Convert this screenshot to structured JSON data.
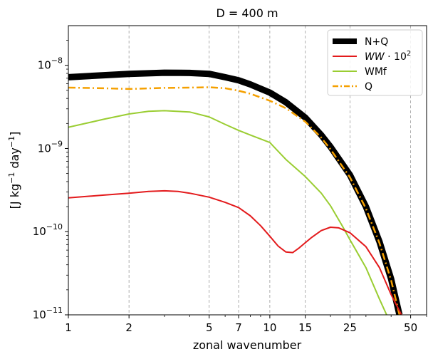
{
  "chart_data": {
    "type": "line",
    "title": "D = 400 m",
    "xlabel": "zonal wavenumber",
    "ylabel_parts": [
      "[J kg",
      "−1",
      " day",
      "−1",
      "]"
    ],
    "xscale": "log",
    "yscale": "log",
    "xlim": [
      1,
      60
    ],
    "ylim": [
      1e-11,
      3e-08
    ],
    "x_ticks": [
      1,
      2,
      5,
      7,
      10,
      15,
      25,
      50
    ],
    "x_tick_labels": [
      "1",
      "2",
      "5",
      "7",
      "10",
      "15",
      "25",
      "50"
    ],
    "y_ticks": [
      {
        "value": 1e-11,
        "mantissa": "10",
        "exp": "−11"
      },
      {
        "value": 1e-10,
        "mantissa": "10",
        "exp": "−10"
      },
      {
        "value": 1e-09,
        "mantissa": "10",
        "exp": "−9"
      },
      {
        "value": 1e-08,
        "mantissa": "10",
        "exp": "−8"
      }
    ],
    "vgrid": true,
    "legend_position": "top-right",
    "legend_labels": [
      {
        "base": "N+Q"
      },
      {
        "base": "WW",
        "suffix": " · 10",
        "exp": "2",
        "italic_base": true
      },
      {
        "base": "WMf"
      },
      {
        "base": "Q"
      }
    ],
    "series": [
      {
        "name": "N+Q",
        "color": "#000000",
        "style": "solid",
        "width": 9,
        "points": [
          [
            1,
            7.2e-09
          ],
          [
            1.5,
            7.6e-09
          ],
          [
            2,
            7.9e-09
          ],
          [
            3,
            8.15e-09
          ],
          [
            4,
            8.1e-09
          ],
          [
            5,
            7.9e-09
          ],
          [
            6,
            7.2e-09
          ],
          [
            7,
            6.6e-09
          ],
          [
            8,
            5.9e-09
          ],
          [
            10,
            4.7e-09
          ],
          [
            12,
            3.6e-09
          ],
          [
            15,
            2.35e-09
          ],
          [
            18,
            1.45e-09
          ],
          [
            20,
            1.05e-09
          ],
          [
            25,
            4.8e-10
          ],
          [
            30,
            2e-10
          ],
          [
            35,
            7.6e-11
          ],
          [
            40,
            2.7e-11
          ],
          [
            44,
            1e-11
          ]
        ]
      },
      {
        "name": "WW · 10^2",
        "color": "#e31a1c",
        "style": "solid",
        "width": 2,
        "points": [
          [
            1,
            2.55e-10
          ],
          [
            1.5,
            2.75e-10
          ],
          [
            2,
            2.9e-10
          ],
          [
            2.5,
            3.05e-10
          ],
          [
            3,
            3.1e-10
          ],
          [
            3.5,
            3.05e-10
          ],
          [
            4,
            2.9e-10
          ],
          [
            5,
            2.6e-10
          ],
          [
            6,
            2.25e-10
          ],
          [
            7,
            1.95e-10
          ],
          [
            8,
            1.55e-10
          ],
          [
            9,
            1.18e-10
          ],
          [
            10,
            8.8e-11
          ],
          [
            11,
            6.7e-11
          ],
          [
            12,
            5.7e-11
          ],
          [
            13,
            5.6e-11
          ],
          [
            14,
            6.4e-11
          ],
          [
            16,
            8.4e-11
          ],
          [
            18,
            1.03e-10
          ],
          [
            20,
            1.13e-10
          ],
          [
            22,
            1.11e-10
          ],
          [
            25,
            9.7e-11
          ],
          [
            30,
            6.6e-11
          ],
          [
            35,
            3.7e-11
          ],
          [
            40,
            1.75e-11
          ],
          [
            45,
            1e-11
          ]
        ]
      },
      {
        "name": "WMf",
        "color": "#9acd32",
        "style": "solid",
        "width": 2,
        "points": [
          [
            1,
            1.8e-09
          ],
          [
            1.5,
            2.25e-09
          ],
          [
            2,
            2.6e-09
          ],
          [
            2.5,
            2.8e-09
          ],
          [
            3,
            2.85e-09
          ],
          [
            4,
            2.75e-09
          ],
          [
            5,
            2.4e-09
          ],
          [
            6,
            1.95e-09
          ],
          [
            7,
            1.65e-09
          ],
          [
            8,
            1.45e-09
          ],
          [
            10,
            1.18e-09
          ],
          [
            12,
            7.4e-10
          ],
          [
            15,
            4.6e-10
          ],
          [
            18,
            2.9e-10
          ],
          [
            20,
            2.05e-10
          ],
          [
            23,
            1.15e-10
          ],
          [
            25,
            8e-11
          ],
          [
            30,
            3.7e-11
          ],
          [
            35,
            1.55e-11
          ],
          [
            38,
            1e-11
          ]
        ]
      },
      {
        "name": "Q",
        "color": "#f5a000",
        "style": "dashdot",
        "width": 2.5,
        "points": [
          [
            1,
            5.4e-09
          ],
          [
            1.5,
            5.3e-09
          ],
          [
            2,
            5.2e-09
          ],
          [
            3,
            5.35e-09
          ],
          [
            4,
            5.4e-09
          ],
          [
            5,
            5.45e-09
          ],
          [
            6,
            5.3e-09
          ],
          [
            7,
            4.95e-09
          ],
          [
            8,
            4.55e-09
          ],
          [
            10,
            3.75e-09
          ],
          [
            12,
            3.05e-09
          ],
          [
            15,
            2.1e-09
          ],
          [
            18,
            1.35e-09
          ],
          [
            20,
            9.8e-10
          ],
          [
            25,
            4.5e-10
          ],
          [
            30,
            1.9e-10
          ],
          [
            35,
            7.3e-11
          ],
          [
            40,
            2.6e-11
          ],
          [
            44,
            1e-11
          ]
        ]
      }
    ]
  }
}
